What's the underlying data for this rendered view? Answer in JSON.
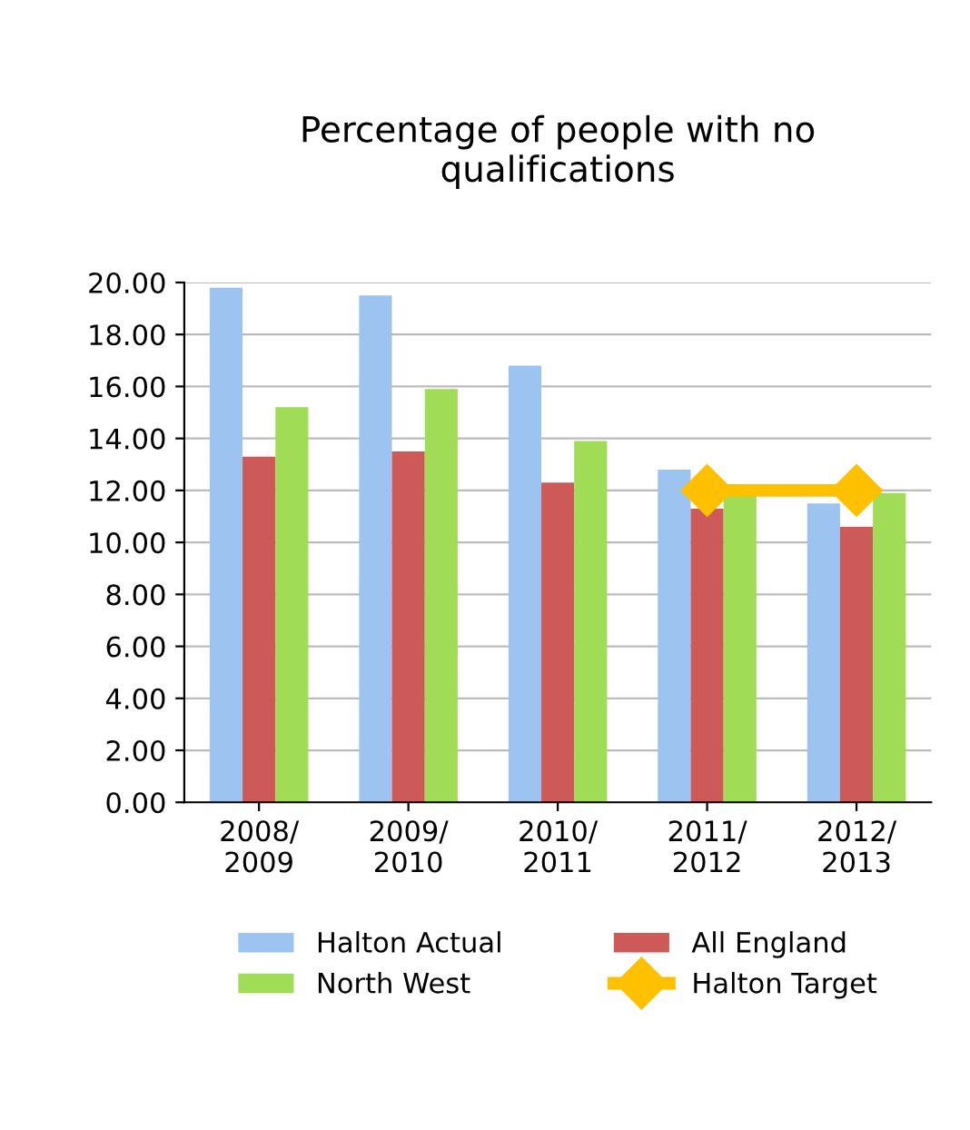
{
  "chart_data": {
    "type": "bar",
    "title": "Percentage of people with no\nqualifications",
    "categories": [
      "2008/\n2009",
      "2009/\n2010",
      "2010/\n2011",
      "2011/\n2012",
      "2012/\n2013"
    ],
    "series": [
      {
        "name": "Halton Actual",
        "color": "#9dc3f0",
        "values": [
          19.8,
          19.5,
          16.8,
          12.8,
          11.5
        ]
      },
      {
        "name": "All England",
        "color": "#cd5a58",
        "values": [
          13.3,
          13.5,
          12.3,
          11.3,
          10.6
        ]
      },
      {
        "name": "North West",
        "color": "#a0dc55",
        "values": [
          15.2,
          15.9,
          13.9,
          11.9,
          11.9
        ]
      },
      {
        "name": "Halton Target",
        "color": "#ffc000",
        "type": "line",
        "marker": "diamond",
        "values": [
          null,
          null,
          null,
          12.0,
          12.0
        ]
      }
    ],
    "ylim": [
      0,
      20
    ],
    "yticks": [
      {
        "value": 0,
        "label": "0.00"
      },
      {
        "value": 2,
        "label": "2.00"
      },
      {
        "value": 4,
        "label": "4.00"
      },
      {
        "value": 6,
        "label": "6.00"
      },
      {
        "value": 8,
        "label": "8.00"
      },
      {
        "value": 10,
        "label": "10.00"
      },
      {
        "value": 12,
        "label": "12.00"
      },
      {
        "value": 14,
        "label": "14.00"
      },
      {
        "value": 16,
        "label": "16.00"
      },
      {
        "value": 18,
        "label": "18.00"
      },
      {
        "value": 20,
        "label": "20.00"
      }
    ],
    "grid": "y",
    "legend": "bottom"
  }
}
